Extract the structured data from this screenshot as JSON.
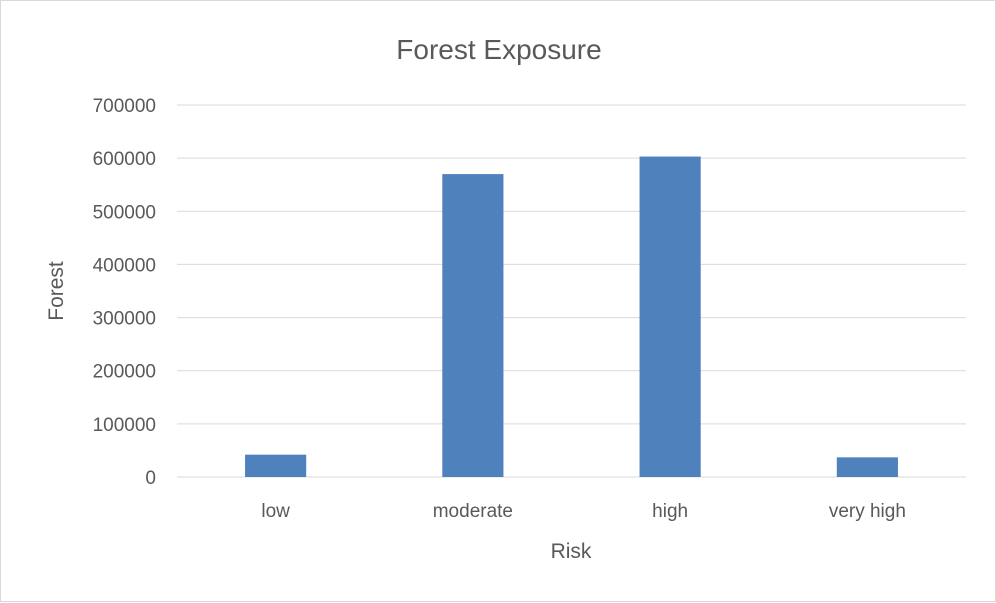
{
  "chart_data": {
    "type": "bar",
    "title": "Forest Exposure",
    "xlabel": "Risk",
    "ylabel": "Forest",
    "categories": [
      "low",
      "moderate",
      "high",
      "very high"
    ],
    "values": [
      42000,
      570000,
      603000,
      37000
    ],
    "ylim": [
      0,
      700000
    ],
    "yticks": [
      "0",
      "100000",
      "200000",
      "300000",
      "400000",
      "500000",
      "600000",
      "700000"
    ],
    "grid": true,
    "legend": "none",
    "bar_color": "#4f81bd"
  }
}
